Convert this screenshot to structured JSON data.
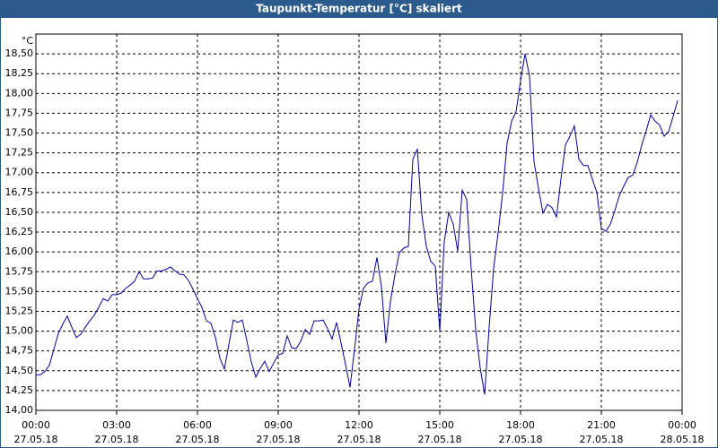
{
  "chart_data": {
    "type": "line",
    "title": "Taupunkt-Temperatur [°C] skaliert",
    "y_unit": "°C",
    "x": [
      0,
      10,
      20,
      30,
      40,
      50,
      60,
      70,
      80,
      90,
      100,
      110,
      120,
      130,
      140,
      150,
      160,
      170,
      180,
      190,
      200,
      210,
      220,
      230,
      240,
      250,
      260,
      270,
      280,
      290,
      300,
      310,
      320,
      330,
      340,
      350,
      360,
      370,
      380,
      390,
      400,
      410,
      420,
      430,
      440,
      450,
      460,
      470,
      480,
      490,
      500,
      510,
      520,
      530,
      540,
      550,
      560,
      570,
      580,
      590,
      600,
      610,
      620,
      630,
      640,
      650,
      660,
      670,
      680,
      690,
      700,
      710,
      720,
      730,
      740,
      750,
      760,
      770,
      780,
      790,
      800,
      810,
      820,
      830,
      840,
      850,
      860,
      870,
      880,
      890,
      900,
      910,
      920,
      930,
      940,
      950,
      960,
      970,
      980,
      990,
      1000,
      1010,
      1020,
      1030,
      1040,
      1050,
      1060,
      1070,
      1080,
      1090,
      1100,
      1110,
      1120,
      1130,
      1140,
      1150,
      1160,
      1170,
      1180,
      1190,
      1200,
      1210,
      1220,
      1230,
      1240,
      1250,
      1260,
      1270,
      1280,
      1290,
      1300,
      1310,
      1320,
      1330,
      1340,
      1350,
      1360,
      1370,
      1380,
      1390,
      1400,
      1410,
      1420,
      1430
    ],
    "series": [
      {
        "name": "Taupunkt",
        "color": "#0000a0",
        "values": [
          14.45,
          14.45,
          14.49,
          14.57,
          14.77,
          14.97,
          15.09,
          15.19,
          15.05,
          14.92,
          14.96,
          15.05,
          15.13,
          15.2,
          15.3,
          15.41,
          15.38,
          15.46,
          15.46,
          15.48,
          15.54,
          15.58,
          15.63,
          15.75,
          15.66,
          15.66,
          15.67,
          15.76,
          15.76,
          15.78,
          15.81,
          15.76,
          15.72,
          15.71,
          15.64,
          15.53,
          15.41,
          15.3,
          15.13,
          15.1,
          14.92,
          14.66,
          14.52,
          14.83,
          15.14,
          15.11,
          15.14,
          14.88,
          14.61,
          14.42,
          14.53,
          14.62,
          14.49,
          14.6,
          14.7,
          14.72,
          14.94,
          14.79,
          14.78,
          14.87,
          15.02,
          14.96,
          15.13,
          15.13,
          15.14,
          15.03,
          14.9,
          15.11,
          14.85,
          14.58,
          14.29,
          14.77,
          15.28,
          15.54,
          15.61,
          15.63,
          15.93,
          15.56,
          14.85,
          15.37,
          15.71,
          15.99,
          16.05,
          16.07,
          17.17,
          17.3,
          16.47,
          16.07,
          15.88,
          15.82,
          15.0,
          16.13,
          16.5,
          16.35,
          16.01,
          16.78,
          16.66,
          15.79,
          15.02,
          14.54,
          14.2,
          15.05,
          15.79,
          16.24,
          16.74,
          17.37,
          17.65,
          17.77,
          18.16,
          18.5,
          18.22,
          17.14,
          16.8,
          16.49,
          16.6,
          16.56,
          16.44,
          16.92,
          17.35,
          17.46,
          17.59,
          17.17,
          17.09,
          17.09,
          16.92,
          16.75,
          16.3,
          16.26,
          16.35,
          16.52,
          16.71,
          16.83,
          16.94,
          16.97,
          17.13,
          17.35,
          17.53,
          17.73,
          17.65,
          17.6,
          17.46,
          17.52,
          17.71,
          17.91
        ]
      }
    ],
    "xlim": [
      0,
      1440
    ],
    "xticks": [
      {
        "value": 0,
        "label": "00:00",
        "date": "27.05.18"
      },
      {
        "value": 180,
        "label": "03:00",
        "date": "27.05.18"
      },
      {
        "value": 360,
        "label": "06:00",
        "date": "27.05.18"
      },
      {
        "value": 540,
        "label": "09:00",
        "date": "27.05.18"
      },
      {
        "value": 720,
        "label": "12:00",
        "date": "27.05.18"
      },
      {
        "value": 900,
        "label": "15:00",
        "date": "27.05.18"
      },
      {
        "value": 1080,
        "label": "18:00",
        "date": "27.05.18"
      },
      {
        "value": 1260,
        "label": "21:00",
        "date": "27.05.18"
      },
      {
        "value": 1440,
        "label": "00:00",
        "date": "28.05.18"
      }
    ],
    "ylim": [
      14,
      18.75
    ],
    "yticks": [
      {
        "value": 14,
        "label": "14,00"
      },
      {
        "value": 14.25,
        "label": "14,25"
      },
      {
        "value": 14.5,
        "label": "14,50"
      },
      {
        "value": 14.75,
        "label": "14,75"
      },
      {
        "value": 15,
        "label": "15,00"
      },
      {
        "value": 15.25,
        "label": "15,25"
      },
      {
        "value": 15.5,
        "label": "15,50"
      },
      {
        "value": 15.75,
        "label": "15,75"
      },
      {
        "value": 16,
        "label": "16,00"
      },
      {
        "value": 16.25,
        "label": "16,25"
      },
      {
        "value": 16.5,
        "label": "16,50"
      },
      {
        "value": 16.75,
        "label": "16,75"
      },
      {
        "value": 17,
        "label": "17,00"
      },
      {
        "value": 17.25,
        "label": "17,25"
      },
      {
        "value": 17.5,
        "label": "17,50"
      },
      {
        "value": 17.75,
        "label": "17,75"
      },
      {
        "value": 18,
        "label": "18,00"
      },
      {
        "value": 18.25,
        "label": "18,25"
      },
      {
        "value": 18.5,
        "label": "18,50"
      }
    ],
    "grid": true
  }
}
